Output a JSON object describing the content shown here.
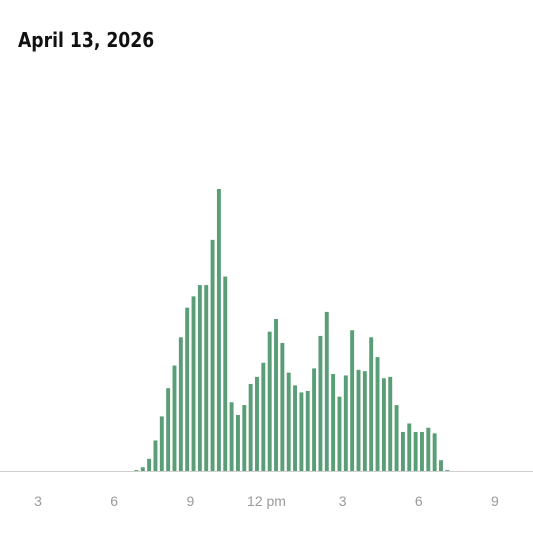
{
  "header": {
    "title": "April 13, 2026"
  },
  "chart_data": {
    "type": "bar",
    "title": "April 13, 2026",
    "xlabel": "",
    "ylabel": "",
    "x_unit": "hour of day",
    "bin_minutes": 15,
    "x_ticks": [
      {
        "hour": 3,
        "label": "3"
      },
      {
        "hour": 6,
        "label": "6"
      },
      {
        "hour": 9,
        "label": "9"
      },
      {
        "hour": 12,
        "label": "12 pm"
      },
      {
        "hour": 15,
        "label": "3"
      },
      {
        "hour": 18,
        "label": "6"
      },
      {
        "hour": 21,
        "label": "9"
      }
    ],
    "x_range": [
      1.5,
      22.5
    ],
    "ylim": [
      0,
      100
    ],
    "grid": false,
    "bar_color": "#5a9e77",
    "baseline_color": "#cfcfcf",
    "x": [
      6.75,
      7.0,
      7.25,
      7.5,
      7.75,
      8.0,
      8.25,
      8.5,
      8.75,
      9.0,
      9.25,
      9.5,
      9.75,
      10.0,
      10.25,
      10.5,
      10.75,
      11.0,
      11.25,
      11.5,
      11.75,
      12.0,
      12.25,
      12.5,
      12.75,
      13.0,
      13.25,
      13.5,
      13.75,
      14.0,
      14.25,
      14.5,
      14.75,
      15.0,
      15.25,
      15.5,
      15.75,
      16.0,
      16.25,
      16.5,
      16.75,
      17.0,
      17.25,
      17.5,
      17.75,
      18.0,
      18.25,
      18.5,
      18.75,
      19.0
    ],
    "values": [
      0.5,
      1.5,
      4.5,
      11,
      19.5,
      29.5,
      37.5,
      47.5,
      58,
      62,
      66,
      66,
      82,
      100,
      69,
      24.5,
      20,
      23.5,
      31,
      33.5,
      38.5,
      49.5,
      54,
      45.5,
      35,
      30.5,
      28,
      28.5,
      36.5,
      48,
      56.5,
      34.5,
      26.5,
      34,
      50,
      36,
      35.5,
      47.5,
      40.5,
      33,
      33.5,
      23.5,
      14,
      17,
      14,
      14,
      15.5,
      13.5,
      4,
      0.5
    ]
  }
}
